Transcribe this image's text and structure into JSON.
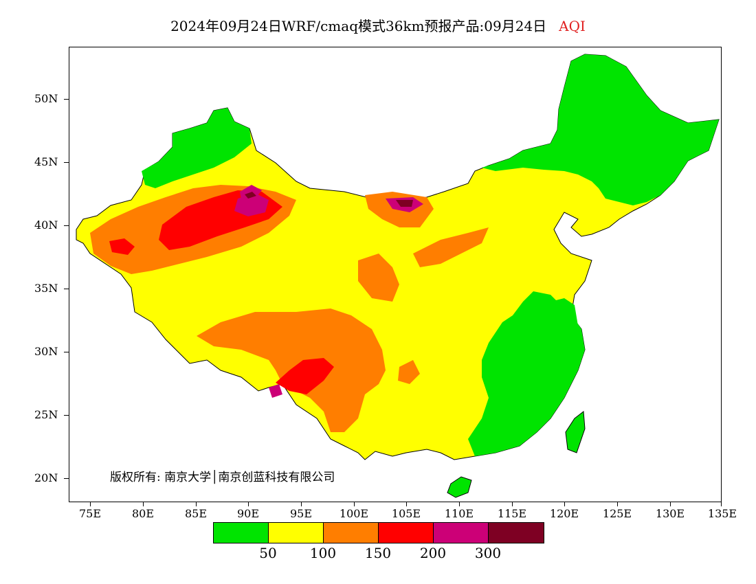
{
  "header": {
    "title": "2024年09月24日WRF/cmaq模式36km预报产品:09月24日",
    "variable": "AQI"
  },
  "map": {
    "y_axis_labels": [
      "50N",
      "45N",
      "40N",
      "35N",
      "30N",
      "25N",
      "20N"
    ],
    "x_axis_labels": [
      "75E",
      "80E",
      "85E",
      "90E",
      "95E",
      "100E",
      "105E",
      "110E",
      "115E",
      "120E",
      "125E",
      "130E",
      "135E"
    ],
    "copyright": "版权所有: 南京大学│南京创蓝科技有限公司",
    "colors": {
      "good": "#00e400",
      "moderate": "#ffff00",
      "sensitive": "#ff7e00",
      "unhealthy": "#ff0000",
      "very_unhealthy": "#cc0077",
      "hazardous": "#7e0023"
    }
  },
  "legend": {
    "labels": [
      "50",
      "100",
      "150",
      "200",
      "300"
    ],
    "colors": [
      "#00e400",
      "#ffff00",
      "#ff7e00",
      "#ff0000",
      "#cc0077",
      "#7e0023"
    ]
  }
}
